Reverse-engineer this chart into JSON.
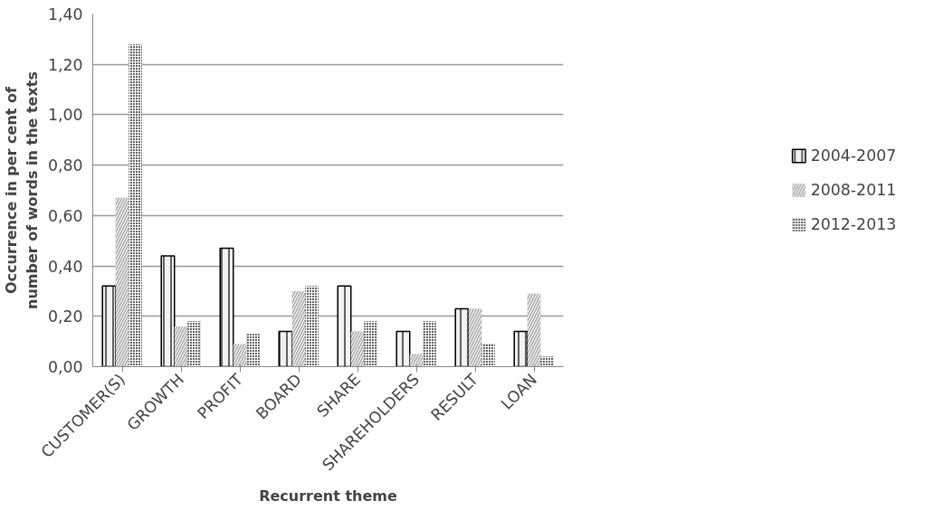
{
  "chart_data": {
    "type": "bar",
    "xlabel": "Recurrent theme",
    "ylabel": "Occurrence in per cent of number of words in the texts",
    "categories": [
      "CUSTOMER(S)",
      "GROWTH",
      "PROFIT",
      "BOARD",
      "SHARE",
      "SHAREHOLDERS",
      "RESULT",
      "LOAN"
    ],
    "series": [
      {
        "name": "2004-2007",
        "color": "#f2f2f2",
        "values": [
          0.32,
          0.44,
          0.47,
          0.14,
          0.32,
          0.14,
          0.23,
          0.14
        ]
      },
      {
        "name": "2008-2011",
        "color": "#a6a6a6",
        "values": [
          0.67,
          0.16,
          0.09,
          0.3,
          0.14,
          0.05,
          0.23,
          0.29
        ]
      },
      {
        "name": "2012-2013",
        "color": "#595959",
        "values": [
          1.28,
          0.18,
          0.13,
          0.32,
          0.18,
          0.18,
          0.09,
          0.04
        ]
      }
    ],
    "ylim": [
      0,
      1.4
    ],
    "yticks": [
      {
        "value": 0,
        "label": "0,00"
      },
      {
        "value": 0.2,
        "label": "0,20"
      },
      {
        "value": 0.4,
        "label": "0,40"
      },
      {
        "value": 0.6,
        "label": "0,60"
      },
      {
        "value": 0.8,
        "label": "0,80"
      },
      {
        "value": 1.0,
        "label": "1,00"
      },
      {
        "value": 1.2,
        "label": "1,20"
      },
      {
        "value": 1.4,
        "label": "1,40"
      }
    ],
    "grid": "y",
    "legend": "right"
  }
}
